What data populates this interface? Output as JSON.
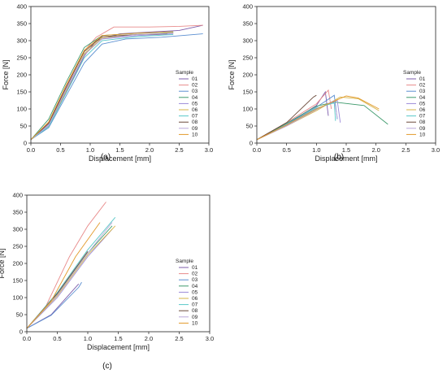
{
  "chart_data": [
    {
      "id": "a",
      "type": "line",
      "caption": "(a)",
      "xlabel": "Displacement [mm]",
      "ylabel": "Force [N]",
      "xlim": [
        0,
        3
      ],
      "ylim": [
        0,
        400
      ],
      "xticks": [
        "0.0",
        "0.5",
        "1.0",
        "1.5",
        "2.0",
        "2.5",
        "3.0"
      ],
      "yticks": [
        "0",
        "50",
        "100",
        "150",
        "200",
        "250",
        "300",
        "350",
        "400"
      ],
      "grid": false,
      "legend_title": "Sample",
      "legend_position": "right",
      "series": [
        {
          "name": "01",
          "color": "#7c5cab",
          "points": [
            [
              0,
              10
            ],
            [
              0.3,
              50
            ],
            [
              0.6,
              150
            ],
            [
              0.9,
              255
            ],
            [
              1.1,
              300
            ],
            [
              1.5,
              320
            ],
            [
              2.0,
              325
            ],
            [
              2.5,
              330
            ],
            [
              2.9,
              345
            ]
          ]
        },
        {
          "name": "02",
          "color": "#e88a8a",
          "points": [
            [
              0,
              10
            ],
            [
              0.3,
              60
            ],
            [
              0.6,
              170
            ],
            [
              0.9,
              270
            ],
            [
              1.1,
              310
            ],
            [
              1.4,
              340
            ],
            [
              2.0,
              340
            ],
            [
              2.5,
              342
            ],
            [
              2.9,
              345
            ]
          ]
        },
        {
          "name": "03",
          "color": "#5b8fd1",
          "points": [
            [
              0,
              10
            ],
            [
              0.3,
              45
            ],
            [
              0.6,
              140
            ],
            [
              0.9,
              235
            ],
            [
              1.2,
              290
            ],
            [
              1.6,
              305
            ],
            [
              2.2,
              310
            ],
            [
              2.9,
              320
            ]
          ]
        },
        {
          "name": "04",
          "color": "#3f9b6d",
          "points": [
            [
              0,
              10
            ],
            [
              0.3,
              70
            ],
            [
              0.6,
              180
            ],
            [
              0.9,
              280
            ],
            [
              1.2,
              315
            ],
            [
              1.8,
              322
            ],
            [
              2.4,
              325
            ]
          ]
        },
        {
          "name": "05",
          "color": "#9b8ad8",
          "points": [
            [
              0,
              10
            ],
            [
              0.3,
              55
            ],
            [
              0.6,
              160
            ],
            [
              0.9,
              260
            ],
            [
              1.2,
              305
            ],
            [
              1.8,
              315
            ],
            [
              2.4,
              320
            ]
          ]
        },
        {
          "name": "06",
          "color": "#d6b447",
          "points": [
            [
              0,
              10
            ],
            [
              0.3,
              50
            ],
            [
              0.6,
              155
            ],
            [
              0.9,
              262
            ],
            [
              1.2,
              308
            ],
            [
              1.8,
              318
            ],
            [
              2.4,
              322
            ]
          ]
        },
        {
          "name": "07",
          "color": "#59c8c8",
          "points": [
            [
              0,
              10
            ],
            [
              0.3,
              48
            ],
            [
              0.6,
              148
            ],
            [
              0.9,
              250
            ],
            [
              1.2,
              300
            ],
            [
              1.8,
              312
            ],
            [
              2.4,
              318
            ]
          ]
        },
        {
          "name": "08",
          "color": "#6b4a3a",
          "points": [
            [
              0,
              10
            ],
            [
              0.3,
              58
            ],
            [
              0.6,
              165
            ],
            [
              0.9,
              268
            ],
            [
              1.2,
              312
            ],
            [
              1.8,
              318
            ],
            [
              2.3,
              320
            ]
          ]
        },
        {
          "name": "09",
          "color": "#b9a8d9",
          "points": [
            [
              0,
              10
            ],
            [
              0.3,
              52
            ],
            [
              0.6,
              158
            ],
            [
              0.9,
              258
            ],
            [
              1.2,
              306
            ],
            [
              1.8,
              318
            ],
            [
              2.4,
              322
            ]
          ]
        },
        {
          "name": "10",
          "color": "#e39a2b",
          "points": [
            [
              0,
              10
            ],
            [
              0.3,
              62
            ],
            [
              0.6,
              172
            ],
            [
              0.9,
              272
            ],
            [
              1.2,
              315
            ],
            [
              1.8,
              322
            ],
            [
              2.4,
              326
            ]
          ]
        }
      ]
    },
    {
      "id": "b",
      "type": "line",
      "caption": "(b)",
      "xlabel": "Displacement [mm]",
      "ylabel": "Force [N]",
      "xlim": [
        0,
        3
      ],
      "ylim": [
        0,
        400
      ],
      "xticks": [
        "0.0",
        "0.5",
        "1.0",
        "1.5",
        "2.0",
        "2.5",
        "3.0"
      ],
      "yticks": [
        "0",
        "50",
        "100",
        "150",
        "200",
        "250",
        "300",
        "350",
        "400"
      ],
      "grid": false,
      "legend_title": "Sample",
      "legend_position": "right",
      "series": [
        {
          "name": "01",
          "color": "#7c5cab",
          "points": [
            [
              0,
              10
            ],
            [
              0.5,
              55
            ],
            [
              1.0,
              110
            ],
            [
              1.15,
              150
            ],
            [
              1.2,
              80
            ]
          ]
        },
        {
          "name": "02",
          "color": "#e88a8a",
          "points": [
            [
              0,
              10
            ],
            [
              0.5,
              60
            ],
            [
              1.0,
              115
            ],
            [
              1.2,
              155
            ],
            [
              1.25,
              100
            ]
          ]
        },
        {
          "name": "03",
          "color": "#5b8fd1",
          "points": [
            [
              0,
              10
            ],
            [
              0.5,
              55
            ],
            [
              1.0,
              105
            ],
            [
              1.3,
              140
            ],
            [
              1.35,
              70
            ]
          ]
        },
        {
          "name": "04",
          "color": "#3f9b6d",
          "points": [
            [
              0,
              10
            ],
            [
              0.5,
              58
            ],
            [
              1.0,
              108
            ],
            [
              1.3,
              120
            ],
            [
              1.8,
              110
            ],
            [
              2.2,
              55
            ]
          ]
        },
        {
          "name": "05",
          "color": "#9b8ad8",
          "points": [
            [
              0,
              10
            ],
            [
              0.5,
              52
            ],
            [
              1.0,
              100
            ],
            [
              1.35,
              125
            ],
            [
              1.4,
              60
            ]
          ]
        },
        {
          "name": "06",
          "color": "#d6b447",
          "points": [
            [
              0,
              10
            ],
            [
              0.5,
              50
            ],
            [
              1.0,
              95
            ],
            [
              1.4,
              135
            ],
            [
              1.7,
              130
            ],
            [
              2.0,
              100
            ],
            [
              2.05,
              95
            ]
          ]
        },
        {
          "name": "07",
          "color": "#59c8c8",
          "points": [
            [
              0,
              10
            ],
            [
              0.5,
              54
            ],
            [
              1.0,
              102
            ],
            [
              1.3,
              118
            ],
            [
              1.32,
              65
            ]
          ]
        },
        {
          "name": "08",
          "color": "#6b4a3a",
          "points": [
            [
              0,
              10
            ],
            [
              0.5,
              60
            ],
            [
              0.95,
              135
            ],
            [
              1.0,
              140
            ]
          ]
        },
        {
          "name": "09",
          "color": "#b9a8d9",
          "points": [
            [
              0,
              10
            ],
            [
              0.5,
              50
            ],
            [
              1.0,
              98
            ],
            [
              1.3,
              125
            ],
            [
              1.35,
              75
            ]
          ]
        },
        {
          "name": "10",
          "color": "#e39a2b",
          "points": [
            [
              0,
              10
            ],
            [
              0.5,
              53
            ],
            [
              1.0,
              100
            ],
            [
              1.5,
              138
            ],
            [
              1.7,
              132
            ],
            [
              2.05,
              100
            ]
          ]
        }
      ]
    },
    {
      "id": "c",
      "type": "line",
      "caption": "(c)",
      "xlabel": "Displacement [mm]",
      "ylabel": "Force [N]",
      "xlim": [
        0,
        3
      ],
      "ylim": [
        0,
        400
      ],
      "xticks": [
        "0.0",
        "0.5",
        "1.0",
        "1.5",
        "2.0",
        "2.5",
        "3.0"
      ],
      "yticks": [
        "0",
        "50",
        "100",
        "150",
        "200",
        "250",
        "300",
        "350",
        "400"
      ],
      "grid": false,
      "legend_title": "Sample",
      "legend_position": "right",
      "series": [
        {
          "name": "01",
          "color": "#7c5cab",
          "points": [
            [
              0,
              10
            ],
            [
              0.4,
              50
            ],
            [
              0.8,
              130
            ],
            [
              0.85,
              140
            ]
          ]
        },
        {
          "name": "02",
          "color": "#e88a8a",
          "points": [
            [
              0,
              10
            ],
            [
              0.3,
              70
            ],
            [
              0.7,
              220
            ],
            [
              1.0,
              310
            ],
            [
              1.3,
              380
            ]
          ]
        },
        {
          "name": "03",
          "color": "#5b8fd1",
          "points": [
            [
              0,
              10
            ],
            [
              0.4,
              48
            ],
            [
              0.85,
              130
            ],
            [
              0.9,
              145
            ]
          ]
        },
        {
          "name": "04",
          "color": "#3f9b6d",
          "points": [
            [
              0,
              10
            ],
            [
              0.5,
              110
            ],
            [
              1.0,
              230
            ],
            [
              1.4,
              310
            ]
          ]
        },
        {
          "name": "05",
          "color": "#9b8ad8",
          "points": [
            [
              0,
              10
            ],
            [
              0.5,
              100
            ],
            [
              1.0,
              220
            ],
            [
              1.4,
              300
            ]
          ]
        },
        {
          "name": "06",
          "color": "#d6b447",
          "points": [
            [
              0,
              10
            ],
            [
              0.5,
              105
            ],
            [
              1.0,
              225
            ],
            [
              1.45,
              310
            ]
          ]
        },
        {
          "name": "07",
          "color": "#59c8c8",
          "points": [
            [
              0,
              10
            ],
            [
              0.5,
              115
            ],
            [
              1.0,
              240
            ],
            [
              1.45,
              335
            ]
          ]
        },
        {
          "name": "08",
          "color": "#6b4a3a",
          "points": [
            [
              0,
              10
            ],
            [
              0.5,
              112
            ],
            [
              1.0,
              235
            ]
          ]
        },
        {
          "name": "09",
          "color": "#b9a8d9",
          "points": [
            [
              0,
              10
            ],
            [
              0.5,
              108
            ],
            [
              1.0,
              230
            ],
            [
              1.4,
              320
            ]
          ]
        },
        {
          "name": "10",
          "color": "#e39a2b",
          "points": [
            [
              0,
              10
            ],
            [
              0.4,
              90
            ],
            [
              0.8,
              220
            ],
            [
              1.2,
              320
            ]
          ]
        }
      ]
    }
  ]
}
